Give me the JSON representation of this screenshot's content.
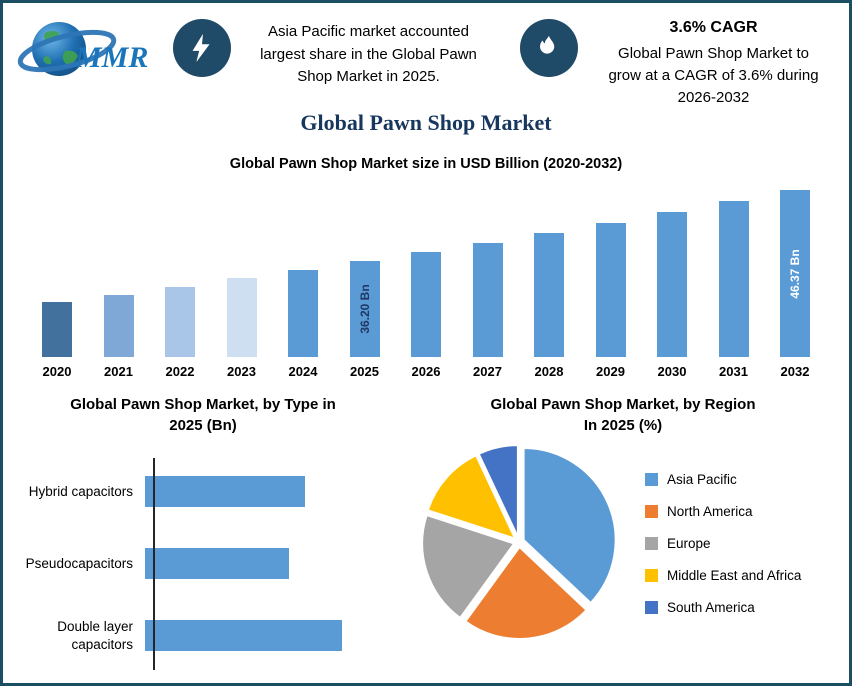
{
  "theme": {
    "border_color": "#1C4E63",
    "icon_circle_color": "#1F4A68",
    "title_color": "#17375E",
    "accent_blue": "#5B9BD5"
  },
  "header": {
    "logo_text": "MMR",
    "highlight": "Asia Pacific market accounted\nlargest share in the Global Pawn\nShop Market in 2025.",
    "cagr_title": "3.6% CAGR",
    "cagr_text": "Global Pawn Shop Market to\ngrow at a CAGR of 3.6% during\n2026-2032"
  },
  "main_title": "Global Pawn Shop Market",
  "chart_data": [
    {
      "type": "bar",
      "title": "Global Pawn Shop Market size in USD Billion (2020-2032)",
      "categories": [
        "2020",
        "2021",
        "2022",
        "2023",
        "2024",
        "2025",
        "2026",
        "2027",
        "2028",
        "2029",
        "2030",
        "2031",
        "2032"
      ],
      "values": [
        30.33,
        31.42,
        32.55,
        33.72,
        34.94,
        36.2,
        37.5,
        38.85,
        40.25,
        41.7,
        43.2,
        44.76,
        46.37
      ],
      "ylim": [
        22.5,
        47.5
      ],
      "ylabel": "USD Billion",
      "colors": [
        "#41719C",
        "#7FA8D6",
        "#A9C5E8",
        "#CEDFF2",
        "#5B9BD5",
        "#5B9BD5",
        "#5B9BD5",
        "#5B9BD5",
        "#5B9BD5",
        "#5B9BD5",
        "#5B9BD5",
        "#5B9BD5",
        "#5B9BD5"
      ],
      "annotations": [
        {
          "category": "2025",
          "label": "36.20 Bn",
          "text_color": "#1F3864"
        },
        {
          "category": "2032",
          "label": "46.37 Bn",
          "text_color": "#FFFFFF"
        }
      ]
    },
    {
      "type": "bar",
      "orientation": "horizontal",
      "title": "Global Pawn Shop Market, by Type in\n2025 (Bn)",
      "categories": [
        "Hybrid capacitors",
        "Pseudocapacitors",
        "Double layer capacitors"
      ],
      "values_relative": [
        0.81,
        0.73,
        1.0
      ],
      "bar_color": "#5B9BD5"
    },
    {
      "type": "pie",
      "title": "Global Pawn Shop Market, by Region\nIn 2025 (%)",
      "labels": [
        "Asia Pacific",
        "North America",
        "Europe",
        "Middle East and Africa",
        "South America"
      ],
      "values": [
        37,
        23,
        20,
        13,
        7
      ],
      "colors": [
        "#5B9BD5",
        "#ED7D31",
        "#A5A5A5",
        "#FFC000",
        "#4472C4"
      ],
      "legend_position": "right",
      "start_angle_deg": 0
    }
  ]
}
